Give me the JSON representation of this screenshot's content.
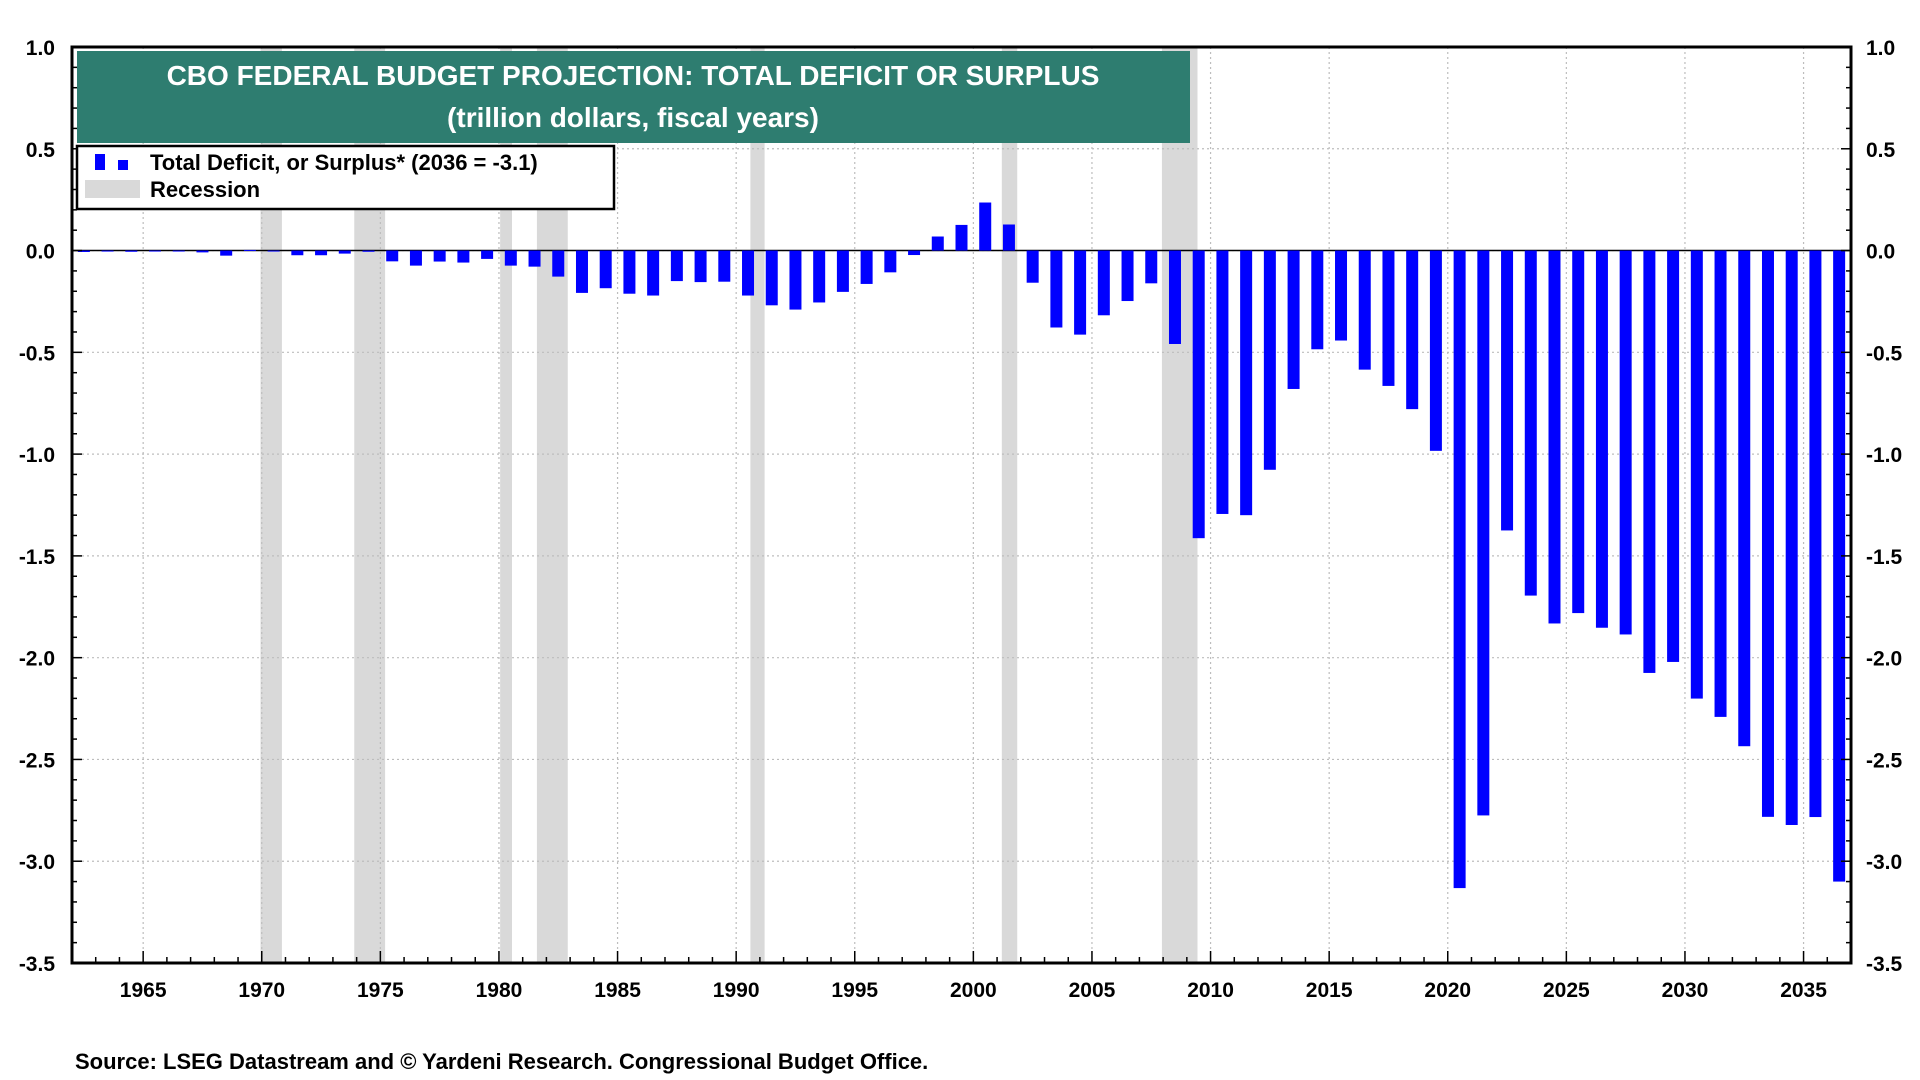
{
  "chart_data": {
    "type": "bar",
    "title": "CBO FEDERAL BUDGET PROJECTION: TOTAL DEFICIT OR SURPLUS",
    "subtitle": "(trillion dollars, fiscal years)",
    "xlabel": "",
    "ylabel": "",
    "ylim": [
      -3.5,
      1.0
    ],
    "xlim": [
      1962,
      2037
    ],
    "yticks": [
      "1.0",
      "0.5",
      "0.0",
      "-0.5",
      "-1.0",
      "-1.5",
      "-2.0",
      "-2.5",
      "-3.0",
      "-3.5"
    ],
    "ytick_values": [
      1.0,
      0.5,
      0.0,
      -0.5,
      -1.0,
      -1.5,
      -2.0,
      -2.5,
      -3.0,
      -3.5
    ],
    "xticks": [
      "1965",
      "1970",
      "1975",
      "1980",
      "1985",
      "1990",
      "1995",
      "2000",
      "2005",
      "2010",
      "2015",
      "2020",
      "2025",
      "2030",
      "2035"
    ],
    "xtick_values": [
      1965,
      1970,
      1975,
      1980,
      1985,
      1990,
      1995,
      2000,
      2005,
      2010,
      2015,
      2020,
      2025,
      2030,
      2035
    ],
    "grid": true,
    "series": [
      {
        "name": "Total Deficit, or Surplus* (2036 = -3.1)",
        "color": "#0000ff",
        "years": [
          1962,
          1963,
          1964,
          1965,
          1966,
          1967,
          1968,
          1969,
          1970,
          1971,
          1972,
          1973,
          1974,
          1975,
          1976,
          1977,
          1978,
          1979,
          1980,
          1981,
          1982,
          1983,
          1984,
          1985,
          1986,
          1987,
          1988,
          1989,
          1990,
          1991,
          1992,
          1993,
          1994,
          1995,
          1996,
          1997,
          1998,
          1999,
          2000,
          2001,
          2002,
          2003,
          2004,
          2005,
          2006,
          2007,
          2008,
          2009,
          2010,
          2011,
          2012,
          2013,
          2014,
          2015,
          2016,
          2017,
          2018,
          2019,
          2020,
          2021,
          2022,
          2023,
          2024,
          2025,
          2026,
          2027,
          2028,
          2029,
          2030,
          2031,
          2032,
          2033,
          2034,
          2035,
          2036
        ],
        "values": [
          -0.007,
          -0.005,
          -0.006,
          -0.001,
          -0.004,
          -0.009,
          -0.025,
          0.003,
          -0.003,
          -0.023,
          -0.023,
          -0.015,
          -0.006,
          -0.053,
          -0.074,
          -0.054,
          -0.059,
          -0.041,
          -0.074,
          -0.079,
          -0.128,
          -0.208,
          -0.185,
          -0.212,
          -0.221,
          -0.15,
          -0.155,
          -0.153,
          -0.221,
          -0.269,
          -0.29,
          -0.255,
          -0.203,
          -0.164,
          -0.107,
          -0.022,
          0.069,
          0.126,
          0.236,
          0.128,
          -0.158,
          -0.378,
          -0.413,
          -0.318,
          -0.248,
          -0.161,
          -0.459,
          -1.413,
          -1.294,
          -1.3,
          -1.077,
          -0.68,
          -0.485,
          -0.442,
          -0.585,
          -0.665,
          -0.779,
          -0.984,
          -3.132,
          -2.775,
          -1.375,
          -1.695,
          -1.832,
          -1.781,
          -1.853,
          -1.886,
          -2.075,
          -2.021,
          -2.201,
          -2.291,
          -2.435,
          -2.782,
          -2.822,
          -2.783,
          -3.1
        ]
      }
    ],
    "recessions": [
      {
        "start": 1969.95,
        "end": 1970.85
      },
      {
        "start": 1973.9,
        "end": 1975.2
      },
      {
        "start": 1980.05,
        "end": 1980.55
      },
      {
        "start": 1981.6,
        "end": 1982.9
      },
      {
        "start": 1990.6,
        "end": 1991.2
      },
      {
        "start": 2001.2,
        "end": 2001.85
      },
      {
        "start": 2007.95,
        "end": 2009.45
      }
    ],
    "legend": {
      "position": "top-left",
      "items": [
        {
          "label": "Total Deficit, or Surplus* (2036 = -3.1)",
          "color": "#0000ff"
        },
        {
          "label": "Recession",
          "color": "#d9d9d9"
        }
      ]
    },
    "title_box_color": "#2e7d70",
    "recession_color": "#d9d9d9",
    "source": "Source: LSEG Datastream and © Yardeni Research. Congressional Budget Office."
  }
}
